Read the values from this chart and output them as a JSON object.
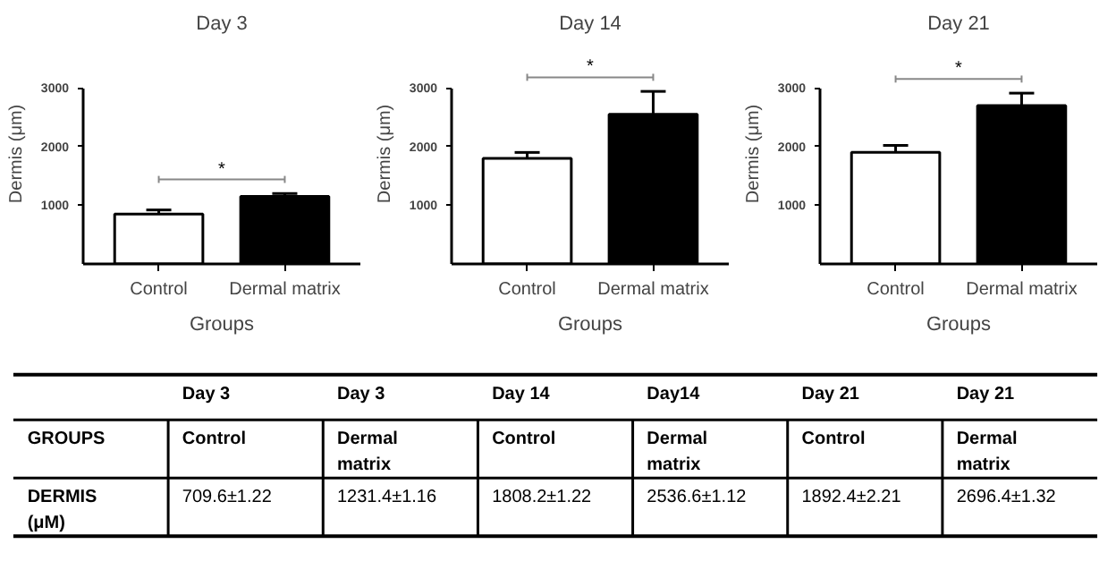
{
  "chart_data": [
    {
      "type": "bar",
      "title": "Day 3",
      "xlabel": "Groups",
      "ylabel": "Dermis (μm)",
      "categories": [
        "Control",
        "Dermal matrix"
      ],
      "values": [
        850,
        1150
      ],
      "colors": [
        "#ffffff",
        "#000000"
      ],
      "errors": [
        70,
        50
      ],
      "ylim": [
        0,
        3000
      ],
      "yticks": [
        1000,
        2000,
        3000
      ],
      "annotations": [
        "*"
      ]
    },
    {
      "type": "bar",
      "title": "Day 14",
      "xlabel": "Groups",
      "ylabel": "Dermis (μm)",
      "categories": [
        "Control",
        "Dermal matrix"
      ],
      "values": [
        1800,
        2550
      ],
      "colors": [
        "#ffffff",
        "#000000"
      ],
      "errors": [
        100,
        390
      ],
      "ylim": [
        0,
        3000
      ],
      "yticks": [
        1000,
        2000,
        3000
      ],
      "annotations": [
        "*"
      ]
    },
    {
      "type": "bar",
      "title": "Day 21",
      "xlabel": "Groups",
      "ylabel": "Dermis (μm)",
      "categories": [
        "Control",
        "Dermal matrix"
      ],
      "values": [
        1900,
        2700
      ],
      "colors": [
        "#ffffff",
        "#000000"
      ],
      "errors": [
        120,
        210
      ],
      "ylim": [
        0,
        3000
      ],
      "yticks": [
        1000,
        2000,
        3000
      ],
      "annotations": [
        "*"
      ]
    },
    {
      "type": "other",
      "annotations": [
        "Day 3",
        "Day 3",
        "Day 14",
        "Day14",
        "Day 21",
        "Day 21",
        "GROUPS",
        "Control",
        "Dermal matrix",
        "Control",
        "Dermal matrix",
        "Control",
        "Dermal matrix",
        "DERMIS (μM)",
        "709.6±1.22",
        "1231.4±1.16",
        "1808.2±1.22",
        "2536.6±1.12",
        "1892.4±2.21",
        "2696.4±1.32"
      ]
    }
  ]
}
